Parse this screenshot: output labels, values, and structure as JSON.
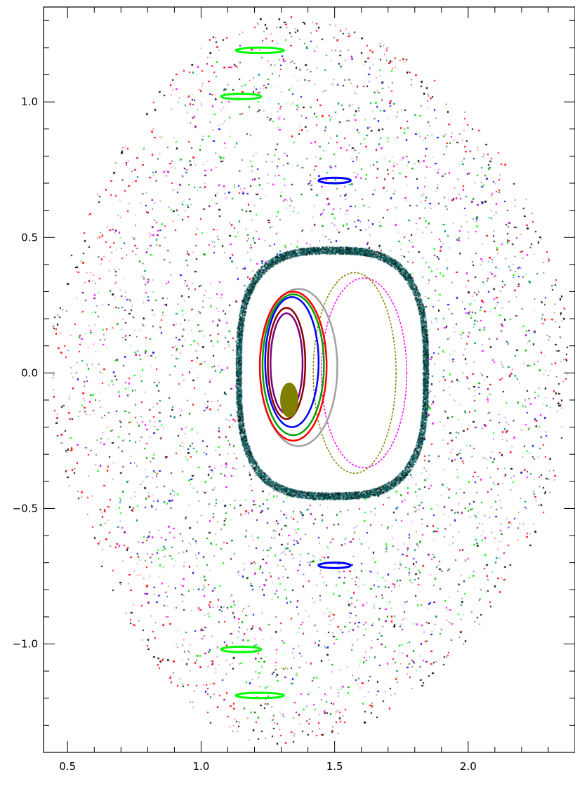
{
  "chart_data": {
    "type": "scatter",
    "title": "",
    "xlabel": "",
    "ylabel": "",
    "xlim": [
      0.41,
      2.4
    ],
    "ylim": [
      -1.4,
      1.35
    ],
    "xticks": [
      0.5,
      1.0,
      1.5,
      2.0
    ],
    "xtick_labels": [
      "0.5",
      "1.0",
      "1.5",
      "2.0"
    ],
    "yticks": [
      -1.0,
      -0.5,
      0.0,
      0.5,
      1.0
    ],
    "ytick_labels": [
      "−1.0",
      "−0.5",
      "0.0",
      "0.5",
      "1.0"
    ],
    "grid": false,
    "legend": "none",
    "point_colors": [
      "#000000",
      "#ff0000",
      "#0000ff",
      "#00a000",
      "#8b008b",
      "#008b8b",
      "#808080",
      "#ff00ff",
      "#00ff00"
    ],
    "chaotic_region": {
      "outer_boundary": {
        "center": [
          1.27,
          0.0
        ],
        "left_x": 0.43,
        "right_x": 2.38,
        "y_extent": [
          -1.37,
          1.32
        ]
      },
      "inner_boundary": {
        "x": [
          1.15,
          1.83
        ],
        "y": [
          -0.44,
          0.44
        ]
      }
    },
    "regular_surfaces": [
      {
        "color": "#808000",
        "x": [
          1.42,
          1.73
        ],
        "y": [
          -0.37,
          0.37
        ]
      },
      {
        "color": "#ff00ff",
        "x": [
          1.45,
          1.77
        ],
        "y": [
          -0.35,
          0.35
        ]
      },
      {
        "color": "#a0a0a0",
        "x": [
          1.22,
          1.51
        ],
        "y": [
          -0.27,
          0.31
        ]
      },
      {
        "color": "#ff0000",
        "x": [
          1.22,
          1.47
        ],
        "y": [
          -0.25,
          0.3
        ]
      },
      {
        "color": "#00a000",
        "x": [
          1.23,
          1.46
        ],
        "y": [
          -0.23,
          0.29
        ]
      },
      {
        "color": "#0000ff",
        "x": [
          1.24,
          1.44
        ],
        "y": [
          -0.2,
          0.28
        ]
      },
      {
        "color": "#8b0000",
        "x": [
          1.25,
          1.39
        ],
        "y": [
          -0.17,
          0.24
        ]
      },
      {
        "color": "#800080",
        "x": [
          1.26,
          1.38
        ],
        "y": [
          -0.15,
          0.22
        ]
      }
    ],
    "islands": [
      {
        "color": "#00ff00",
        "center": [
          1.22,
          1.19
        ],
        "size": [
          0.18,
          0.02
        ]
      },
      {
        "color": "#00ff00",
        "center": [
          1.22,
          -1.19
        ],
        "size": [
          0.18,
          0.02
        ]
      },
      {
        "color": "#00ff00",
        "center": [
          1.15,
          1.02
        ],
        "size": [
          0.15,
          0.02
        ]
      },
      {
        "color": "#00ff00",
        "center": [
          1.15,
          -1.02
        ],
        "size": [
          0.15,
          0.02
        ]
      },
      {
        "color": "#0000ff",
        "center": [
          1.5,
          0.71
        ],
        "size": [
          0.12,
          0.02
        ]
      },
      {
        "color": "#0000ff",
        "center": [
          1.5,
          -0.71
        ],
        "size": [
          0.12,
          0.02
        ]
      },
      {
        "color": "#808000",
        "center": [
          1.33,
          -0.1
        ],
        "size": [
          0.06,
          0.12
        ]
      }
    ]
  }
}
